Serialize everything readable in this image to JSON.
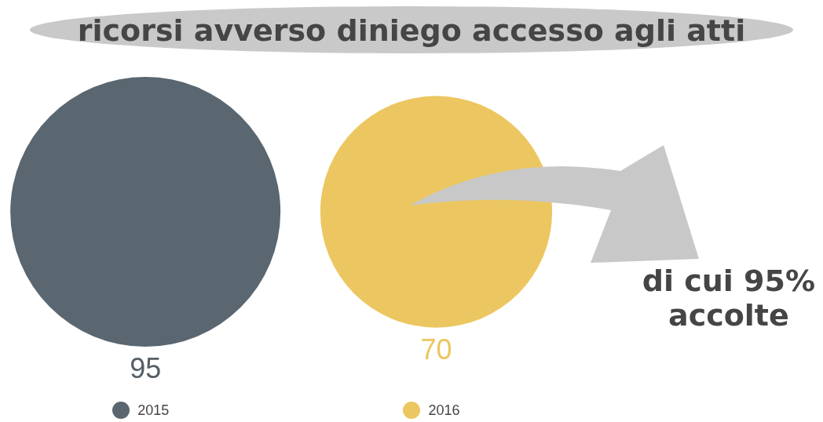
{
  "chart_data": {
    "type": "other",
    "title": "ricorsi avverso diniego accesso agli atti",
    "series": [
      {
        "name": "2015",
        "color": "#5a6670",
        "values": [
          95
        ]
      },
      {
        "name": "2016",
        "color": "#ecc660",
        "values": [
          70
        ]
      }
    ],
    "data_labels": true,
    "legend": "bottom",
    "annotations": [
      "di cui 95%\naccolte"
    ]
  }
}
